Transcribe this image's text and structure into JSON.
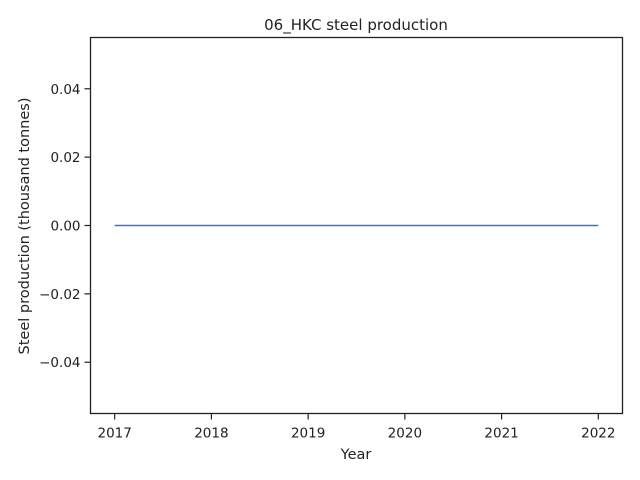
{
  "chart_data": {
    "type": "line",
    "title": "06_HKC steel production",
    "xlabel": "Year",
    "ylabel": "Steel production (thousand tonnes)",
    "x": [
      2017,
      2018,
      2019,
      2020,
      2021,
      2022
    ],
    "series": [
      {
        "values": [
          0,
          0,
          0,
          0,
          0,
          0
        ],
        "color": "#4c72b0"
      }
    ],
    "xticks": [
      2017,
      2018,
      2019,
      2020,
      2021,
      2022
    ],
    "xtick_labels": [
      "2017",
      "2018",
      "2019",
      "2020",
      "2021",
      "2022"
    ],
    "yticks": [
      -0.04,
      -0.02,
      0.0,
      0.02,
      0.04
    ],
    "ytick_labels": [
      "−0.04",
      "−0.02",
      "0.00",
      "0.02",
      "0.04"
    ],
    "xlim": [
      2016.75,
      2022.25
    ],
    "ylim": [
      -0.055,
      0.055
    ],
    "grid": false,
    "legend": "none"
  }
}
